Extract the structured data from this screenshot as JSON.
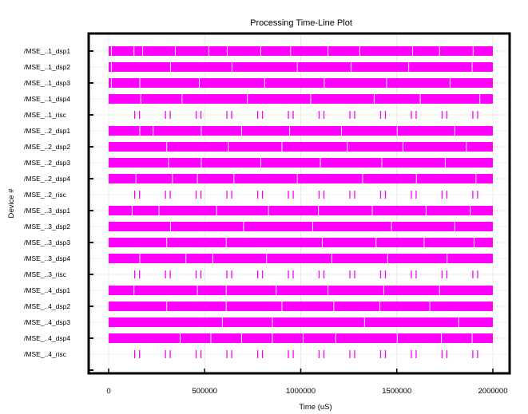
{
  "chart_data": {
    "type": "timeline",
    "title": "Processing Time-Line Plot",
    "xlabel": "Time (uS)",
    "ylabel": "Device #",
    "xlim": [
      0,
      2000000
    ],
    "xticks": [
      "0",
      "500000",
      "1000000",
      "1500000",
      "2000000"
    ],
    "xtick_values": [
      0,
      500000,
      1000000,
      1500000,
      2000000
    ],
    "grid": true,
    "bar_color": "#ff00ff",
    "rows": [
      {
        "label": "/MSE_..1_dsp1",
        "kind": "busy",
        "span": [
          0,
          2000000
        ],
        "gaps": [
          12000,
          130000,
          175000,
          345000,
          520000,
          615000,
          790000,
          945000,
          1140000,
          1305000,
          1580000,
          1720000,
          1895000
        ]
      },
      {
        "label": "/MSE_..1_dsp2",
        "kind": "busy",
        "span": [
          0,
          2000000
        ],
        "gaps": [
          12000,
          320000,
          640000,
          980000,
          1260000,
          1560000,
          1890000
        ]
      },
      {
        "label": "/MSE_..1_dsp3",
        "kind": "busy",
        "span": [
          0,
          2000000
        ],
        "gaps": [
          12000,
          160000,
          470000,
          810000,
          1120000,
          1445000,
          1775000
        ]
      },
      {
        "label": "/MSE_..1_dsp4",
        "kind": "busy",
        "span": [
          0,
          2000000
        ],
        "gaps": [
          165000,
          380000,
          720000,
          1050000,
          1380000,
          1620000,
          1930000
        ]
      },
      {
        "label": "/MSE_..1_risc",
        "kind": "events",
        "events": [
          133000,
          158000,
          293000,
          318000,
          453000,
          478000,
          613000,
          638000,
          773000,
          798000,
          933000,
          958000,
          1093000,
          1118000,
          1253000,
          1278000,
          1413000,
          1438000,
          1573000,
          1598000,
          1733000,
          1758000,
          1893000,
          1918000
        ]
      },
      {
        "label": "/MSE_..2_dsp1",
        "kind": "busy",
        "span": [
          0,
          2000000
        ],
        "gaps": [
          160000,
          230000,
          480000,
          690000,
          940000,
          1210000,
          1500000,
          1800000
        ]
      },
      {
        "label": "/MSE_..2_dsp2",
        "kind": "busy",
        "span": [
          0,
          2000000
        ],
        "gaps": [
          300000,
          620000,
          900000,
          1240000,
          1530000,
          1860000
        ]
      },
      {
        "label": "/MSE_..2_dsp3",
        "kind": "busy",
        "span": [
          0,
          2000000
        ],
        "gaps": [
          310000,
          480000,
          790000,
          1100000,
          1420000,
          1750000
        ]
      },
      {
        "label": "/MSE_..2_dsp4",
        "kind": "busy",
        "span": [
          0,
          2000000
        ],
        "gaps": [
          140000,
          330000,
          460000,
          650000,
          980000,
          1320000,
          1600000,
          1910000
        ]
      },
      {
        "label": "/MSE_..2_risc",
        "kind": "events",
        "events": [
          133000,
          158000,
          293000,
          318000,
          453000,
          478000,
          613000,
          638000,
          773000,
          798000,
          933000,
          958000,
          1093000,
          1118000,
          1253000,
          1278000,
          1413000,
          1438000,
          1573000,
          1598000,
          1733000,
          1758000,
          1893000,
          1918000
        ]
      },
      {
        "label": "/MSE_..3_dsp1",
        "kind": "busy",
        "span": [
          0,
          2000000
        ],
        "gaps": [
          120000,
          260000,
          560000,
          830000,
          1090000,
          1370000,
          1650000,
          1880000
        ]
      },
      {
        "label": "/MSE_..3_dsp2",
        "kind": "busy",
        "span": [
          0,
          2000000
        ],
        "gaps": [
          320000,
          700000,
          1060000,
          1470000,
          1800000
        ]
      },
      {
        "label": "/MSE_..3_dsp3",
        "kind": "busy",
        "span": [
          0,
          2000000
        ],
        "gaps": [
          300000,
          610000,
          1110000,
          1390000,
          1640000,
          1900000
        ]
      },
      {
        "label": "/MSE_..3_dsp4",
        "kind": "busy",
        "span": [
          0,
          2000000
        ],
        "gaps": [
          160000,
          400000,
          540000,
          820000,
          1160000,
          1450000,
          1760000
        ]
      },
      {
        "label": "/MSE_..3_risc",
        "kind": "events",
        "events": [
          133000,
          158000,
          293000,
          318000,
          453000,
          478000,
          613000,
          638000,
          773000,
          798000,
          933000,
          958000,
          1093000,
          1118000,
          1253000,
          1278000,
          1413000,
          1438000,
          1573000,
          1598000,
          1733000,
          1758000,
          1893000,
          1918000
        ]
      },
      {
        "label": "/MSE_..4_dsp1",
        "kind": "busy",
        "span": [
          0,
          2000000
        ],
        "gaps": [
          130000,
          460000,
          610000,
          870000,
          1140000,
          1430000,
          1720000
        ]
      },
      {
        "label": "/MSE_..4_dsp2",
        "kind": "busy",
        "span": [
          0,
          2000000
        ],
        "gaps": [
          300000,
          610000,
          900000,
          1170000,
          1410000,
          1670000
        ]
      },
      {
        "label": "/MSE_..4_dsp3",
        "kind": "busy",
        "span": [
          0,
          2000000
        ],
        "gaps": [
          590000,
          850000,
          1330000,
          1820000
        ]
      },
      {
        "label": "/MSE_..4_dsp4",
        "kind": "busy",
        "span": [
          0,
          2000000
        ],
        "gaps": [
          370000,
          530000,
          690000,
          850000,
          1010000,
          1180000,
          1500000,
          1730000,
          1890000
        ]
      },
      {
        "label": "/MSE_..4_risc",
        "kind": "events",
        "events": [
          133000,
          158000,
          293000,
          318000,
          453000,
          478000,
          613000,
          638000,
          773000,
          798000,
          933000,
          958000,
          1093000,
          1118000,
          1253000,
          1278000,
          1413000,
          1438000,
          1573000,
          1598000,
          1733000,
          1758000,
          1893000,
          1918000
        ]
      }
    ]
  }
}
